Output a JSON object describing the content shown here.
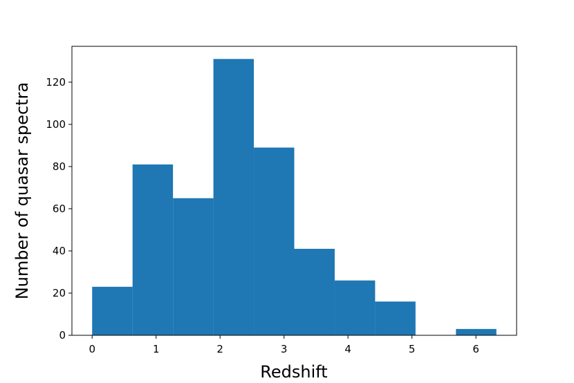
{
  "chart_data": {
    "type": "histogram",
    "x_label": "Redshift",
    "y_label": "Number of quasar spectra",
    "bins": [
      0,
      0.632,
      1.264,
      1.896,
      2.528,
      3.16,
      3.792,
      4.424,
      5.056,
      5.688,
      6.32
    ],
    "values": [
      23,
      81,
      65,
      131,
      89,
      41,
      26,
      16,
      0,
      3
    ],
    "color": "#1f77b4",
    "xlim": [
      -0.316,
      6.636
    ],
    "xticks": [
      0,
      1,
      2,
      3,
      4,
      5,
      6
    ],
    "ylim": [
      0,
      137
    ],
    "yticks": [
      0,
      20,
      40,
      60,
      80,
      100,
      120
    ]
  }
}
